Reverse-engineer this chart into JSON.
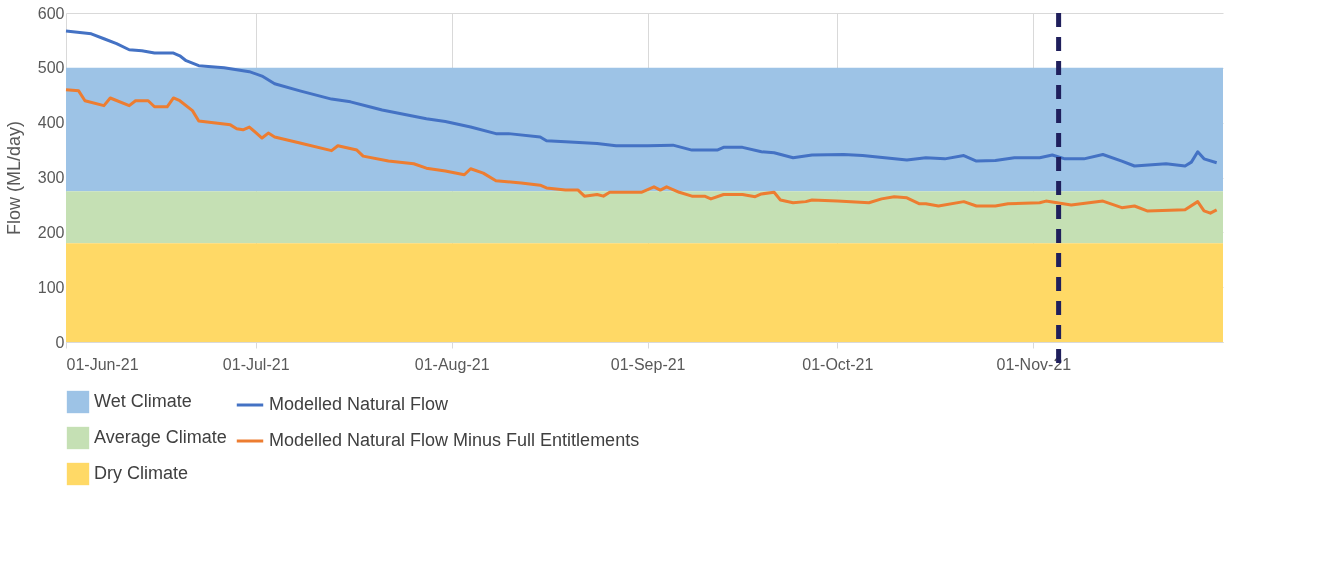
{
  "chart_data": {
    "type": "line",
    "ylabel": "Flow (ML/day)",
    "xlim": [
      "2021-06-01",
      "2021-12-01"
    ],
    "xticks": [
      {
        "value": "2021-06-01",
        "label": "01-Jun-21"
      },
      {
        "value": "2021-07-01",
        "label": "01-Jul-21"
      },
      {
        "value": "2021-08-01",
        "label": "01-Aug-21"
      },
      {
        "value": "2021-09-01",
        "label": "01-Sep-21"
      },
      {
        "value": "2021-10-01",
        "label": "01-Oct-21"
      },
      {
        "value": "2021-11-01",
        "label": "01-Nov-21"
      }
    ],
    "ylim": [
      0,
      600
    ],
    "yticks": [
      0,
      100,
      200,
      300,
      400,
      500,
      600
    ],
    "grid": true,
    "legend": "bottom",
    "marker": "none",
    "line_style": "solid",
    "bands": [
      {
        "axis": "y",
        "from": 275,
        "to": 500,
        "label": "Wet Climate",
        "color": "#9dc3e6"
      },
      {
        "axis": "y",
        "from": 180,
        "to": 275,
        "label": "Average Climate",
        "color": "#c5e0b4"
      },
      {
        "axis": "y",
        "from": 0,
        "to": 180,
        "label": "Dry Climate",
        "color": "#ffd966"
      }
    ],
    "ref_lines": [
      {
        "axis": "x",
        "value": "2021-11-05",
        "color": "#1f1f5c",
        "line_style": "dashed"
      }
    ],
    "series": [
      {
        "name": "Modelled Natural Flow",
        "color": "#4472c4",
        "x": [
          "2021-06-01",
          "2021-06-05",
          "2021-06-07",
          "2021-06-09",
          "2021-06-11",
          "2021-06-13",
          "2021-06-15",
          "2021-06-18",
          "2021-06-19",
          "2021-06-20",
          "2021-06-22",
          "2021-06-26",
          "2021-06-30",
          "2021-07-02",
          "2021-07-04",
          "2021-07-08",
          "2021-07-13",
          "2021-07-16",
          "2021-07-19",
          "2021-07-21",
          "2021-07-28",
          "2021-07-31",
          "2021-08-04",
          "2021-08-08",
          "2021-08-10",
          "2021-08-15",
          "2021-08-16",
          "2021-08-19",
          "2021-08-24",
          "2021-08-27",
          "2021-09-01",
          "2021-09-05",
          "2021-09-08",
          "2021-09-12",
          "2021-09-13",
          "2021-09-16",
          "2021-09-19",
          "2021-09-21",
          "2021-09-24",
          "2021-09-27",
          "2021-10-02",
          "2021-10-05",
          "2021-10-12",
          "2021-10-15",
          "2021-10-18",
          "2021-10-21",
          "2021-10-23",
          "2021-10-26",
          "2021-10-29",
          "2021-11-02",
          "2021-11-04",
          "2021-11-06",
          "2021-11-09",
          "2021-11-12",
          "2021-11-15",
          "2021-11-17",
          "2021-11-22",
          "2021-11-25",
          "2021-11-26",
          "2021-11-27",
          "2021-11-28",
          "2021-11-30"
        ],
        "values": [
          567,
          562,
          553,
          544,
          533,
          531,
          527,
          527,
          522,
          513,
          504,
          500,
          493,
          485,
          471,
          458,
          443,
          438,
          429,
          423,
          407,
          402,
          392,
          380,
          380,
          374,
          367,
          365,
          362,
          358,
          358,
          359,
          350,
          350,
          355,
          355,
          347,
          345,
          336,
          341,
          342,
          340,
          332,
          336,
          334,
          340,
          330,
          331,
          336,
          336,
          341,
          334,
          334,
          342,
          330,
          321,
          325,
          321,
          328,
          347,
          334,
          327
        ]
      },
      {
        "name": "Modelled Natural Flow Minus Full Entitlements",
        "color": "#ed7d31",
        "x": [
          "2021-06-01",
          "2021-06-03",
          "2021-06-04",
          "2021-06-07",
          "2021-06-08",
          "2021-06-11",
          "2021-06-12",
          "2021-06-14",
          "2021-06-15",
          "2021-06-17",
          "2021-06-18",
          "2021-06-19",
          "2021-06-21",
          "2021-06-22",
          "2021-06-27",
          "2021-06-28",
          "2021-06-29",
          "2021-06-30",
          "2021-07-02",
          "2021-07-03",
          "2021-07-04",
          "2021-07-08",
          "2021-07-13",
          "2021-07-14",
          "2021-07-17",
          "2021-07-18",
          "2021-07-22",
          "2021-07-26",
          "2021-07-28",
          "2021-07-31",
          "2021-08-03",
          "2021-08-04",
          "2021-08-06",
          "2021-08-08",
          "2021-08-12",
          "2021-08-15",
          "2021-08-16",
          "2021-08-19",
          "2021-08-21",
          "2021-08-22",
          "2021-08-24",
          "2021-08-25",
          "2021-08-26",
          "2021-08-31",
          "2021-09-02",
          "2021-09-03",
          "2021-09-04",
          "2021-09-06",
          "2021-09-08",
          "2021-09-10",
          "2021-09-11",
          "2021-09-13",
          "2021-09-16",
          "2021-09-18",
          "2021-09-19",
          "2021-09-21",
          "2021-09-22",
          "2021-09-24",
          "2021-09-26",
          "2021-09-27",
          "2021-10-01",
          "2021-10-06",
          "2021-10-08",
          "2021-10-10",
          "2021-10-12",
          "2021-10-14",
          "2021-10-15",
          "2021-10-17",
          "2021-10-21",
          "2021-10-23",
          "2021-10-26",
          "2021-10-28",
          "2021-11-02",
          "2021-11-03",
          "2021-11-07",
          "2021-11-12",
          "2021-11-15",
          "2021-11-17",
          "2021-11-19",
          "2021-11-25",
          "2021-11-27",
          "2021-11-28",
          "2021-11-29",
          "2021-11-30"
        ],
        "values": [
          460,
          458,
          440,
          431,
          445,
          431,
          440,
          440,
          429,
          429,
          445,
          440,
          422,
          403,
          396,
          389,
          387,
          392,
          372,
          381,
          374,
          363,
          349,
          358,
          350,
          339,
          330,
          325,
          317,
          312,
          305,
          316,
          308,
          294,
          290,
          286,
          281,
          277,
          277,
          266,
          269,
          266,
          273,
          273,
          283,
          277,
          283,
          273,
          266,
          266,
          261,
          269,
          269,
          265,
          270,
          273,
          259,
          254,
          256,
          259,
          257,
          254,
          261,
          265,
          263,
          252,
          252,
          248,
          256,
          248,
          248,
          252,
          254,
          257,
          250,
          257,
          245,
          248,
          239,
          241,
          256,
          239,
          235,
          241
        ]
      }
    ]
  }
}
